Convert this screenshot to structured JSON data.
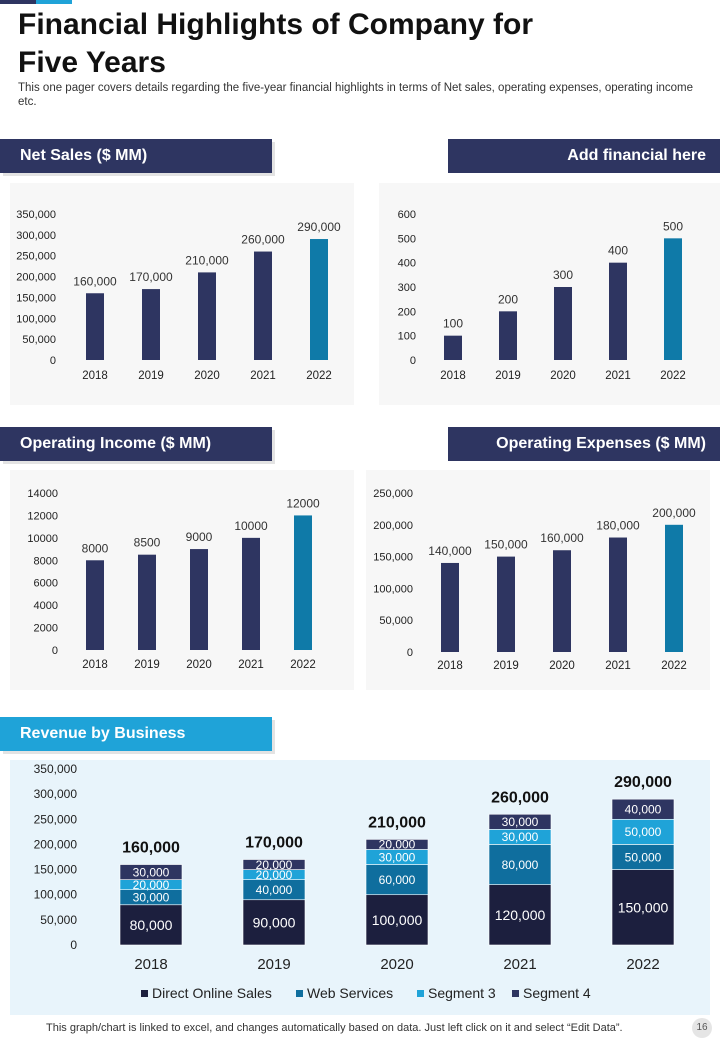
{
  "page": {
    "title_line1": "Financial Highlights of Company for",
    "title_line2": "Five Years",
    "subtitle": "This one pager covers details regarding the five-year financial highlights in terms of Net sales, operating expenses, operating income etc.",
    "footer_note": "This graph/chart is linked to excel,  and changes automatically based on data. Just left click on it and select “Edit Data”.",
    "page_number": "16"
  },
  "colors": {
    "navy": "#2e3561",
    "teal": "#0f7aa8",
    "cyan": "#1fa3d8",
    "dark": "#1c1f3e",
    "seg_blue": "#0f6e9e",
    "seg_light": "#1fa3d8"
  },
  "sections": {
    "net_sales": "Net Sales ($ MM)",
    "add_financial": "Add financial here",
    "operating_income": "Operating Income ($ MM)",
    "operating_expenses": "Operating Expenses ($ MM)",
    "revenue_segments": "Revenue by Business Segments"
  },
  "chart_data": [
    {
      "id": "net_sales",
      "type": "bar",
      "categories": [
        "2018",
        "2019",
        "2020",
        "2021",
        "2022"
      ],
      "values": [
        160000,
        170000,
        210000,
        260000,
        290000
      ],
      "value_labels": [
        "160,000",
        "170,000",
        "210,000",
        "260,000",
        "290,000"
      ],
      "yticks": [
        0,
        50000,
        100000,
        150000,
        200000,
        250000,
        300000,
        350000
      ],
      "ytick_labels": [
        "0",
        "50,000",
        "100,000",
        "150,000",
        "200,000",
        "250,000",
        "300,000",
        "350,000"
      ],
      "ylim": [
        0,
        350000
      ],
      "highlight_index": 4
    },
    {
      "id": "add_financial",
      "type": "bar",
      "categories": [
        "2018",
        "2019",
        "2020",
        "2021",
        "2022"
      ],
      "values": [
        100,
        200,
        300,
        400,
        500
      ],
      "value_labels": [
        "100",
        "200",
        "300",
        "400",
        "500"
      ],
      "yticks": [
        0,
        100,
        200,
        300,
        400,
        500,
        600
      ],
      "ytick_labels": [
        "0",
        "100",
        "200",
        "300",
        "400",
        "500",
        "600"
      ],
      "ylim": [
        0,
        600
      ],
      "highlight_index": 4
    },
    {
      "id": "operating_income",
      "type": "bar",
      "categories": [
        "2018",
        "2019",
        "2020",
        "2021",
        "2022"
      ],
      "values": [
        8000,
        8500,
        9000,
        10000,
        12000
      ],
      "value_labels": [
        "8000",
        "8500",
        "9000",
        "10000",
        "12000"
      ],
      "yticks": [
        0,
        2000,
        4000,
        6000,
        8000,
        10000,
        12000,
        14000
      ],
      "ytick_labels": [
        "0",
        "2000",
        "4000",
        "6000",
        "8000",
        "10000",
        "12000",
        "14000"
      ],
      "ylim": [
        0,
        14000
      ],
      "highlight_index": 4
    },
    {
      "id": "operating_expenses",
      "type": "bar",
      "categories": [
        "2018",
        "2019",
        "2020",
        "2021",
        "2022"
      ],
      "values": [
        140000,
        150000,
        160000,
        180000,
        200000
      ],
      "value_labels": [
        "140,000",
        "150,000",
        "160,000",
        "180,000",
        "200,000"
      ],
      "yticks": [
        0,
        50000,
        100000,
        150000,
        200000,
        250000
      ],
      "ytick_labels": [
        "0",
        "50,000",
        "100,000",
        "150,000",
        "200,000",
        "250,000"
      ],
      "ylim": [
        0,
        250000
      ],
      "highlight_index": 4
    },
    {
      "id": "revenue_segments",
      "type": "bar",
      "stacked": true,
      "categories": [
        "2018",
        "2019",
        "2020",
        "2021",
        "2022"
      ],
      "totals": [
        160000,
        170000,
        210000,
        260000,
        290000
      ],
      "total_labels": [
        "160,000",
        "170,000",
        "210,000",
        "260,000",
        "290,000"
      ],
      "series": [
        {
          "name": "Direct Online Sales",
          "values": [
            80000,
            90000,
            100000,
            120000,
            150000
          ],
          "labels": [
            "80,000",
            "90,000",
            "100,000",
            "120,000",
            "150,000"
          ]
        },
        {
          "name": "Web Services",
          "values": [
            30000,
            40000,
            60000,
            80000,
            50000
          ],
          "labels": [
            "30,000",
            "40,000",
            "60,000",
            "80,000",
            "50,000"
          ]
        },
        {
          "name": "Segment 3",
          "values": [
            20000,
            20000,
            30000,
            30000,
            50000
          ],
          "labels": [
            "20,000",
            "20,000",
            "30,000",
            "30,000",
            "50,000"
          ]
        },
        {
          "name": "Segment 4",
          "values": [
            30000,
            20000,
            20000,
            30000,
            40000
          ],
          "labels": [
            "30,000",
            "20,000",
            "20,000",
            "30,000",
            "40,000"
          ]
        }
      ],
      "yticks": [
        0,
        50000,
        100000,
        150000,
        200000,
        250000,
        300000,
        350000
      ],
      "ytick_labels": [
        "0",
        "50,000",
        "100,000",
        "150,000",
        "200,000",
        "250,000",
        "300,000",
        "350,000"
      ],
      "ylim": [
        0,
        350000
      ],
      "legend_position": "bottom"
    }
  ]
}
